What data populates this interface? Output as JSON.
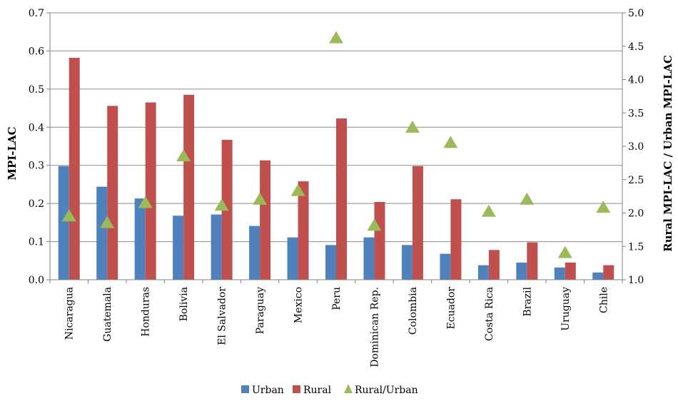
{
  "chart_data": {
    "type": "bar",
    "categories": [
      "Nicaragua",
      "Guatemala",
      "Honduras",
      "Bolivia",
      "El Salvador",
      "Paraguay",
      "Mexico",
      "Peru",
      "Dominican Rep.",
      "Colombia",
      "Ecuador",
      "Costa Rica",
      "Brazil",
      "Uruguay",
      "Chile"
    ],
    "series": [
      {
        "name": "Urban",
        "axis": "left",
        "kind": "bar",
        "color": "#4f81bd",
        "values": [
          0.298,
          0.244,
          0.213,
          0.168,
          0.171,
          0.141,
          0.111,
          0.091,
          0.111,
          0.091,
          0.068,
          0.038,
          0.045,
          0.032,
          0.019
        ]
      },
      {
        "name": "Rural",
        "axis": "left",
        "kind": "bar",
        "color": "#c0504d",
        "values": [
          0.582,
          0.456,
          0.465,
          0.485,
          0.367,
          0.313,
          0.258,
          0.423,
          0.204,
          0.298,
          0.211,
          0.078,
          0.098,
          0.045,
          0.038
        ]
      },
      {
        "name": "Rural/Urban",
        "axis": "right",
        "kind": "marker",
        "marker": "triangle",
        "color": "#9bbb59",
        "values": [
          1.96,
          1.86,
          2.16,
          2.86,
          2.12,
          2.21,
          2.34,
          4.63,
          1.82,
          3.29,
          3.06,
          2.03,
          2.21,
          1.41,
          2.09
        ]
      }
    ],
    "ylabel": "MPI-LAC",
    "y2label": "Rural MPI-LAC / Urban MPI-LAC",
    "ylim": [
      0,
      0.7
    ],
    "y2lim": [
      1.0,
      5.0
    ],
    "yticks": [
      "0.0",
      "0.1",
      "0.2",
      "0.3",
      "0.4",
      "0.5",
      "0.6",
      "0.7"
    ],
    "y2ticks": [
      "1.0",
      "1.5",
      "2.0",
      "2.5",
      "3.0",
      "3.5",
      "4.0",
      "4.5",
      "5.0"
    ],
    "grid": true,
    "legend_position": "bottom"
  }
}
